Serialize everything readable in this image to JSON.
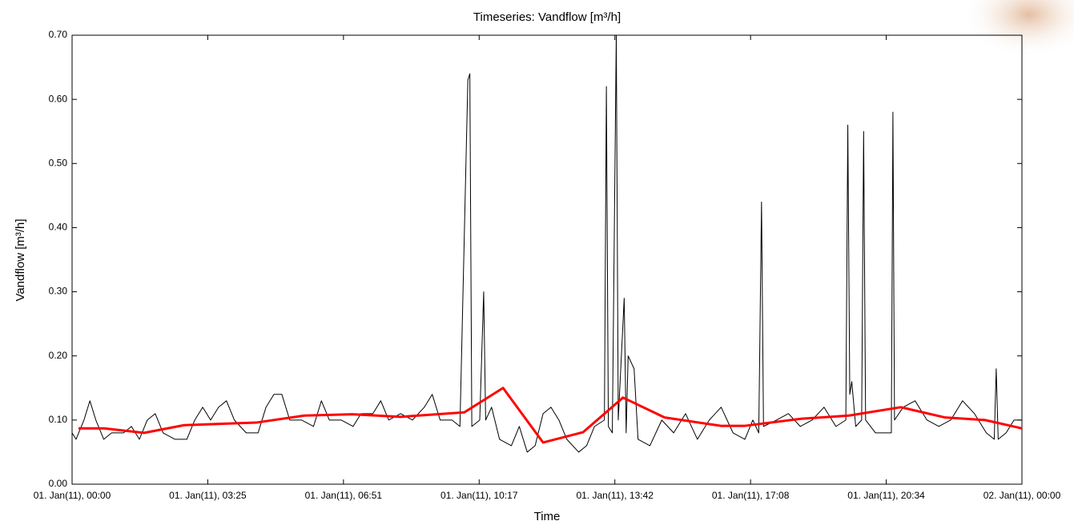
{
  "chart_data": {
    "type": "line",
    "title": "Timeseries: Vandflow [m³/h]",
    "x_label": "Time",
    "y_label": "Vandflow [m³/h]",
    "xlim": [
      0,
      24
    ],
    "ylim": [
      0,
      0.7
    ],
    "xticks": [
      {
        "value": 0,
        "label": "01. Jan(11), 00:00"
      },
      {
        "value": 3.4286,
        "label": "01. Jan(11), 03:25"
      },
      {
        "value": 6.8571,
        "label": "01. Jan(11), 06:51"
      },
      {
        "value": 10.2857,
        "label": "01. Jan(11), 10:17"
      },
      {
        "value": 13.7143,
        "label": "01. Jan(11), 13:42"
      },
      {
        "value": 17.1429,
        "label": "01. Jan(11), 17:08"
      },
      {
        "value": 20.5714,
        "label": "01. Jan(11), 20:34"
      },
      {
        "value": 24,
        "label": "02. Jan(11), 00:00"
      }
    ],
    "yticks": [
      {
        "value": 0,
        "label": "0.00"
      },
      {
        "value": 0.1,
        "label": "0.10"
      },
      {
        "value": 0.2,
        "label": "0.20"
      },
      {
        "value": 0.3,
        "label": "0.30"
      },
      {
        "value": 0.4,
        "label": "0.40"
      },
      {
        "value": 0.5,
        "label": "0.50"
      },
      {
        "value": 0.6,
        "label": "0.60"
      },
      {
        "value": 0.7,
        "label": "0.70"
      }
    ],
    "series": [
      {
        "color": "#000000",
        "width": 1,
        "x": [
          0.0,
          0.1,
          0.3,
          0.45,
          0.6,
          0.8,
          1.0,
          1.3,
          1.5,
          1.7,
          1.9,
          2.1,
          2.3,
          2.6,
          2.9,
          3.1,
          3.3,
          3.5,
          3.7,
          3.9,
          4.1,
          4.4,
          4.7,
          4.9,
          5.1,
          5.3,
          5.5,
          5.8,
          6.1,
          6.3,
          6.5,
          6.8,
          7.1,
          7.3,
          7.6,
          7.8,
          8.0,
          8.3,
          8.6,
          8.9,
          9.1,
          9.3,
          9.6,
          9.8,
          10.0,
          10.05,
          10.1,
          10.3,
          10.4,
          10.45,
          10.6,
          10.8,
          11.1,
          11.3,
          11.5,
          11.7,
          11.9,
          12.1,
          12.3,
          12.5,
          12.8,
          13.0,
          13.2,
          13.45,
          13.5,
          13.55,
          13.65,
          13.75,
          13.8,
          13.95,
          14.0,
          14.05,
          14.2,
          14.3,
          14.6,
          14.9,
          15.2,
          15.5,
          15.8,
          16.1,
          16.4,
          16.7,
          17.0,
          17.2,
          17.35,
          17.42,
          17.47,
          17.8,
          18.1,
          18.4,
          18.7,
          19.0,
          19.3,
          19.55,
          19.6,
          19.65,
          19.7,
          19.8,
          19.95,
          20.0,
          20.05,
          20.3,
          20.7,
          20.74,
          20.78,
          21.0,
          21.3,
          21.6,
          21.9,
          22.2,
          22.5,
          22.8,
          23.1,
          23.3,
          23.35,
          23.4,
          23.6,
          23.8,
          24.0
        ],
        "values": [
          0.08,
          0.07,
          0.1,
          0.13,
          0.1,
          0.07,
          0.08,
          0.08,
          0.09,
          0.07,
          0.1,
          0.11,
          0.08,
          0.07,
          0.07,
          0.1,
          0.12,
          0.1,
          0.12,
          0.13,
          0.1,
          0.08,
          0.08,
          0.12,
          0.14,
          0.14,
          0.1,
          0.1,
          0.09,
          0.13,
          0.1,
          0.1,
          0.09,
          0.11,
          0.11,
          0.13,
          0.1,
          0.11,
          0.1,
          0.12,
          0.14,
          0.1,
          0.1,
          0.09,
          0.63,
          0.64,
          0.09,
          0.1,
          0.3,
          0.1,
          0.12,
          0.07,
          0.06,
          0.09,
          0.05,
          0.06,
          0.11,
          0.12,
          0.1,
          0.07,
          0.05,
          0.06,
          0.09,
          0.1,
          0.62,
          0.09,
          0.08,
          0.7,
          0.1,
          0.29,
          0.08,
          0.2,
          0.18,
          0.07,
          0.06,
          0.1,
          0.08,
          0.11,
          0.07,
          0.1,
          0.12,
          0.08,
          0.07,
          0.1,
          0.08,
          0.44,
          0.09,
          0.1,
          0.11,
          0.09,
          0.1,
          0.12,
          0.09,
          0.1,
          0.56,
          0.14,
          0.16,
          0.09,
          0.1,
          0.55,
          0.1,
          0.08,
          0.08,
          0.58,
          0.1,
          0.12,
          0.13,
          0.1,
          0.09,
          0.1,
          0.13,
          0.11,
          0.08,
          0.07,
          0.18,
          0.07,
          0.08,
          0.1,
          0.1
        ]
      },
      {
        "color": "#ff0000",
        "width": 3,
        "x": [
          0.16,
          0.81,
          1.82,
          2.83,
          4.65,
          5.87,
          7.08,
          8.3,
          9.91,
          10.89,
          11.9,
          12.91,
          13.92,
          14.97,
          16.39,
          17.0,
          18.42,
          19.63,
          20.94,
          22.06,
          23.07,
          24.0
        ],
        "values": [
          0.087,
          0.087,
          0.08,
          0.092,
          0.096,
          0.107,
          0.109,
          0.105,
          0.112,
          0.15,
          0.065,
          0.081,
          0.135,
          0.104,
          0.091,
          0.091,
          0.102,
          0.107,
          0.12,
          0.104,
          0.1,
          0.087
        ]
      }
    ]
  }
}
